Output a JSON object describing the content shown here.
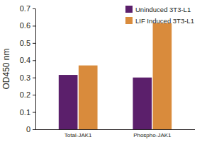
{
  "chart_data": {
    "type": "bar",
    "y_label": "OD450 nm",
    "categories": [
      "Total-JAK1",
      "Phospho-JAK1"
    ],
    "series": [
      {
        "name": "Uninduced 3T3-L1",
        "color": "#5b1f6b",
        "values": [
          0.315,
          0.3
        ]
      },
      {
        "name": "LIF Induced 3T3-L1",
        "color": "#d98b3c",
        "values": [
          0.37,
          0.615
        ]
      }
    ],
    "ylim": [
      0,
      0.7
    ],
    "yticks": [
      0,
      0.1,
      0.2,
      0.3,
      0.4,
      0.5,
      0.6,
      0.7
    ],
    "grid": false,
    "legend": "upper right"
  }
}
